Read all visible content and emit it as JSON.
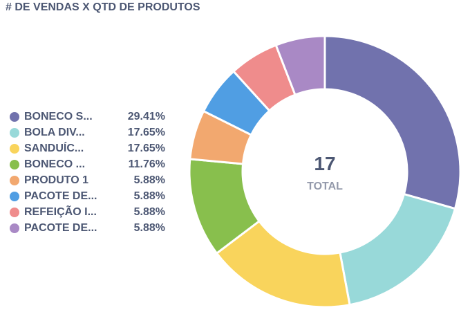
{
  "title": "# DE VENDAS X QTD DE PRODUTOS",
  "chart_data": {
    "type": "pie",
    "variant": "donut",
    "title": "# DE VENDAS X QTD DE PRODUTOS",
    "center_value": "17",
    "center_label": "TOTAL",
    "legend_position": "left",
    "slices": [
      {
        "label": "BONECO S...",
        "value": 5,
        "percent": "29.41%",
        "color": "#7172ad"
      },
      {
        "label": "BOLA DIV...",
        "value": 3,
        "percent": "17.65%",
        "color": "#98d9d9"
      },
      {
        "label": "SANDUÍC...",
        "value": 3,
        "percent": "17.65%",
        "color": "#f9d45c"
      },
      {
        "label": "BONECO ...",
        "value": 2,
        "percent": "11.76%",
        "color": "#88bf4d"
      },
      {
        "label": "PRODUTO 1",
        "value": 1,
        "percent": "5.88%",
        "color": "#f2a86f"
      },
      {
        "label": "PACOTE DE...",
        "value": 1,
        "percent": "5.88%",
        "color": "#509ee3"
      },
      {
        "label": "REFEIÇÃO I...",
        "value": 1,
        "percent": "5.88%",
        "color": "#ef8c8c"
      },
      {
        "label": "PACOTE DE...",
        "value": 1,
        "percent": "5.88%",
        "color": "#a989c5"
      }
    ]
  }
}
